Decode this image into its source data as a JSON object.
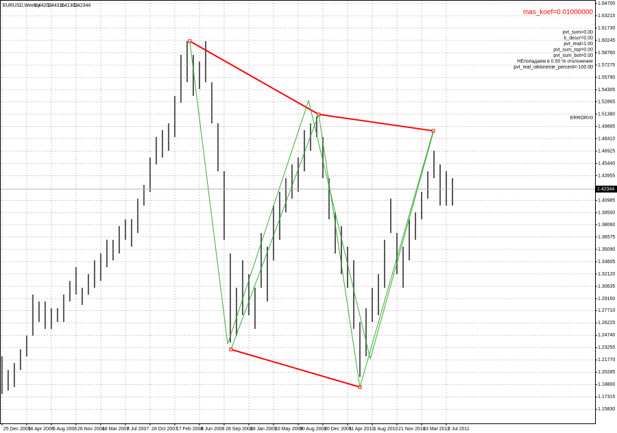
{
  "chart_data": {
    "type": "ohlc",
    "title": "EURUSD,Weekly",
    "last_bar": {
      "open": 1.44203,
      "high": 1.44316,
      "low": 1.41303,
      "close": 1.42344
    },
    "bar_color": "#555555",
    "grid": true,
    "x": [
      "2005-12-25",
      "2006-01-22",
      "2006-02-19",
      "2006-03-19",
      "2006-04-16",
      "2006-05-14",
      "2006-06-11",
      "2006-07-09",
      "2006-08-06",
      "2006-09-03",
      "2006-10-01",
      "2006-10-29",
      "2006-11-26",
      "2006-12-24",
      "2007-01-21",
      "2007-02-18",
      "2007-03-18",
      "2007-04-15",
      "2007-05-13",
      "2007-06-10",
      "2007-07-08",
      "2007-08-05",
      "2007-09-02",
      "2007-09-30",
      "2007-10-28",
      "2007-11-25",
      "2007-12-23",
      "2008-01-20",
      "2008-02-17",
      "2008-03-16",
      "2008-04-13",
      "2008-05-11",
      "2008-06-08",
      "2008-07-06",
      "2008-08-03",
      "2008-08-31",
      "2008-09-28",
      "2008-10-26",
      "2008-11-23",
      "2008-12-21",
      "2009-01-18",
      "2009-02-15",
      "2009-03-15",
      "2009-04-12",
      "2009-05-10",
      "2009-06-07",
      "2009-07-05",
      "2009-08-02",
      "2009-08-30",
      "2009-09-27",
      "2009-10-25",
      "2009-11-22",
      "2009-12-20",
      "2010-01-17",
      "2010-02-14",
      "2010-03-14",
      "2010-04-11",
      "2010-05-09",
      "2010-06-06",
      "2010-07-04",
      "2010-08-01",
      "2010-08-29",
      "2010-09-26",
      "2010-10-24",
      "2010-11-21",
      "2010-12-19",
      "2011-01-16",
      "2011-02-13",
      "2011-03-13",
      "2011-04-10",
      "2011-05-08",
      "2011-06-05",
      "2011-07-03",
      "2011-07-31"
    ],
    "high": [
      1.2221,
      1.2056,
      1.2139,
      1.2304,
      1.2469,
      1.2964,
      1.2881,
      1.2881,
      1.2799,
      1.2799,
      1.2964,
      1.3129,
      1.3294,
      1.3046,
      1.3211,
      1.3376,
      1.3459,
      1.3624,
      1.3624,
      1.3789,
      1.3871,
      1.3871,
      1.4119,
      1.4284,
      1.4614,
      1.4861,
      1.4944,
      1.5026,
      1.5356,
      1.5851,
      1.6016,
      1.5851,
      1.5769,
      1.6016,
      1.5521,
      1.5026,
      1.4449,
      1.3459,
      1.3046,
      1.3376,
      1.3211,
      1.3046,
      1.3706,
      1.3541,
      1.4036,
      1.4201,
      1.4366,
      1.4531,
      1.4614,
      1.4944,
      1.5026,
      1.5109,
      1.4861,
      1.4366,
      1.3954,
      1.3789,
      1.3541,
      1.3376,
      1.2634,
      1.2799,
      1.3046,
      1.3211,
      1.3624,
      1.4119,
      1.3706,
      1.3541,
      1.3871,
      1.3954,
      1.4201,
      1.4449,
      1.4696,
      1.4531,
      1.4449,
      1.4366
    ],
    "low": [
      1.1767,
      1.1809,
      1.185,
      1.2056,
      1.2221,
      1.2469,
      1.2634,
      1.2551,
      1.2551,
      1.2634,
      1.2634,
      1.2881,
      1.2964,
      1.284,
      1.2964,
      1.3046,
      1.3129,
      1.3294,
      1.3376,
      1.3459,
      1.3624,
      1.3541,
      1.3706,
      1.4036,
      1.4201,
      1.4531,
      1.4614,
      1.4696,
      1.4861,
      1.5274,
      1.5521,
      1.5356,
      1.5439,
      1.5521,
      1.5026,
      1.4449,
      1.3624,
      1.2386,
      1.2469,
      1.2716,
      1.2716,
      1.2551,
      1.3046,
      1.2881,
      1.3376,
      1.3624,
      1.3954,
      1.4119,
      1.4201,
      1.4449,
      1.4696,
      1.4861,
      1.4366,
      1.3871,
      1.3459,
      1.3211,
      1.3046,
      1.2551,
      1.1974,
      1.2221,
      1.2634,
      1.2716,
      1.3046,
      1.3706,
      1.3211,
      1.3046,
      1.3376,
      1.3624,
      1.3871,
      1.4119,
      1.4366,
      1.4036,
      1.4036,
      1.4036
    ],
    "lines": [
      {
        "color": "#ff0000",
        "x": [
          "2008-04-25",
          "2009-12-01",
          "2011-05-05"
        ],
        "y": [
          1.6016,
          1.5134,
          1.4936
        ]
      },
      {
        "color": "#ff0000",
        "x": [
          "2008-10-29",
          "2010-06-06"
        ],
        "y": [
          1.2304,
          1.185
        ]
      },
      {
        "color": "#33aa33",
        "x": [
          "2008-04-25",
          "2008-10-14",
          "2009-10-16",
          "2010-07-23",
          "2011-05-05"
        ],
        "y": [
          1.6016,
          1.237,
          1.5299,
          1.2188,
          1.4919
        ]
      },
      {
        "color": "#33aa33",
        "x": [
          "2008-10-29",
          "2009-12-01",
          "2010-06-06",
          "2011-05-05"
        ],
        "y": [
          1.2304,
          1.5134,
          1.185,
          1.4936
        ]
      }
    ],
    "xlim": [
      "2005-12-16",
      "2013-05-08"
    ],
    "ylim": [
      1.1413,
      1.6511
    ],
    "xticks": [
      {
        "value": "2005-12-25",
        "label": "25 Dec 2005"
      },
      {
        "value": "2006-04-16",
        "label": "16 Apr 2006"
      },
      {
        "value": "2006-08-06",
        "label": "6 Aug 2006"
      },
      {
        "value": "2006-11-26",
        "label": "26 Nov 2006"
      },
      {
        "value": "2007-03-18",
        "label": "18 Mar 2007"
      },
      {
        "value": "2007-07-08",
        "label": "8 Jul 2007"
      },
      {
        "value": "2007-10-28",
        "label": "28 Oct 2007"
      },
      {
        "value": "2008-02-17",
        "label": "17 Feb 2008"
      },
      {
        "value": "2008-06-08",
        "label": "8 Jun 2008"
      },
      {
        "value": "2008-09-28",
        "label": "28 Sep 2008"
      },
      {
        "value": "2009-01-18",
        "label": "18 Jan 2009"
      },
      {
        "value": "2009-05-10",
        "label": "10 May 2009"
      },
      {
        "value": "2009-08-30",
        "label": "30 Aug 2009"
      },
      {
        "value": "2009-12-20",
        "label": "20 Dec 2009"
      },
      {
        "value": "2010-04-11",
        "label": "11 Apr 2010"
      },
      {
        "value": "2010-08-01",
        "label": "1 Aug 2010"
      },
      {
        "value": "2010-11-21",
        "label": "21 Nov 2010"
      },
      {
        "value": "2011-03-13",
        "label": "13 Mar 2011"
      },
      {
        "value": "2011-07-03",
        "label": "3 Jul 2011"
      }
    ],
    "yticks": [
      {
        "value": 1.647,
        "label": "1.64700"
      },
      {
        "value": 1.63215,
        "label": "1.63215"
      },
      {
        "value": 1.6173,
        "label": "1.61730"
      },
      {
        "value": 1.60245,
        "label": "1.60245"
      },
      {
        "value": 1.5876,
        "label": "1.58760"
      },
      {
        "value": 1.57275,
        "label": "1.57275"
      },
      {
        "value": 1.5579,
        "label": "1.55790"
      },
      {
        "value": 1.54305,
        "label": "1.54305"
      },
      {
        "value": 1.52865,
        "label": "1.52865"
      },
      {
        "value": 1.5138,
        "label": "1.51380"
      },
      {
        "value": 1.49895,
        "label": "1.49895"
      },
      {
        "value": 1.4841,
        "label": "1.48410"
      },
      {
        "value": 1.46925,
        "label": "1.46925"
      },
      {
        "value": 1.4544,
        "label": "1.45440"
      },
      {
        "value": 1.43955,
        "label": "1.43955"
      },
      {
        "value": 1.40985,
        "label": "1.40985"
      },
      {
        "value": 1.395,
        "label": "1.39500"
      },
      {
        "value": 1.3806,
        "label": "1.38060"
      },
      {
        "value": 1.36575,
        "label": "1.36575"
      },
      {
        "value": 1.3509,
        "label": "1.35090"
      },
      {
        "value": 1.33605,
        "label": "1.33605"
      },
      {
        "value": 1.3212,
        "label": "1.32120"
      },
      {
        "value": 1.30635,
        "label": "1.30635"
      },
      {
        "value": 1.2915,
        "label": "1.29150"
      },
      {
        "value": 1.2771,
        "label": "1.27710"
      },
      {
        "value": 1.26225,
        "label": "1.26225"
      },
      {
        "value": 1.2474,
        "label": "1.24740"
      },
      {
        "value": 1.23255,
        "label": "1.23255"
      },
      {
        "value": 1.2177,
        "label": "1.21770"
      },
      {
        "value": 1.20285,
        "label": "1.20285"
      },
      {
        "value": 1.188,
        "label": "1.18800"
      },
      {
        "value": 1.17315,
        "label": "1.17315"
      },
      {
        "value": 1.1583,
        "label": "1.15830"
      }
    ],
    "mas_koef": "mas_koef=0.01000000",
    "info": [
      "pvt_sum=0.00",
      "k_descr=0.00",
      "pvt_real=1.00",
      "pvt_sum_top=0.00",
      "pvt_sum_bot=0.00",
      "НЕпопадаем в 0.50 % отклонение",
      "pvt_real_otklonenie_percent=-100.00"
    ],
    "error": "ERROR=0"
  }
}
